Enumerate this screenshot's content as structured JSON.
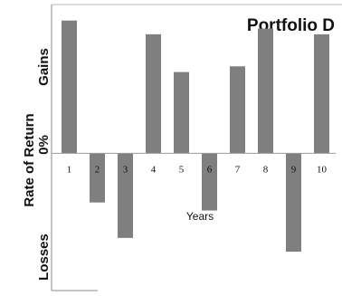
{
  "chart_data": {
    "type": "bar",
    "title": "Portfolio D",
    "xlabel": "Years",
    "ylabel": "Rate of Return",
    "y_labels": {
      "top": "Gains",
      "zero": "0%",
      "bottom": "Losses"
    },
    "categories": [
      "1",
      "2",
      "3",
      "4",
      "5",
      "6",
      "7",
      "8",
      "9",
      "10"
    ],
    "values": [
      11.6,
      -4.3,
      -7.4,
      10.4,
      7.1,
      -5.0,
      7.6,
      10.9,
      -8.6,
      10.4
    ],
    "ylim": [
      -12,
      13
    ],
    "grid": false,
    "legend": "none",
    "bar_color": "#7f7f7f"
  }
}
